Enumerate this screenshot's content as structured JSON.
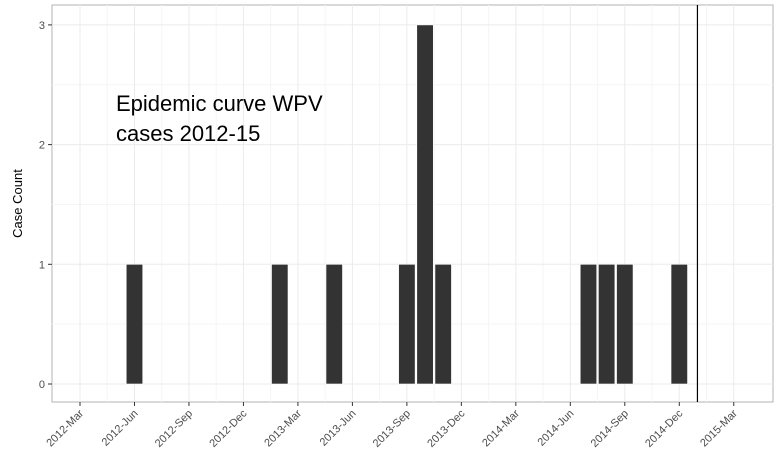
{
  "chart_data": {
    "type": "bar",
    "ylabel": "Case Count",
    "ylim": [
      0,
      3
    ],
    "yticks": [
      0,
      1,
      2,
      3
    ],
    "xticks": [
      "2012-Mar",
      "2012-Jun",
      "2012-Sep",
      "2012-Dec",
      "2013-Mar",
      "2013-Jun",
      "2013-Sep",
      "2013-Dec",
      "2014-Mar",
      "2014-Jun",
      "2014-Sep",
      "2014-Dec",
      "2015-Mar"
    ],
    "bars": [
      {
        "period": "2012-Jun",
        "value": 1
      },
      {
        "period": "2013-Feb",
        "value": 1
      },
      {
        "period": "2013-May",
        "value": 1
      },
      {
        "period": "2013-Sep",
        "value": 1
      },
      {
        "period": "2013-Oct",
        "value": 3
      },
      {
        "period": "2013-Nov",
        "value": 1
      },
      {
        "period": "2014-Jul",
        "value": 1
      },
      {
        "period": "2014-Aug",
        "value": 1
      },
      {
        "period": "2014-Sep",
        "value": 1
      },
      {
        "period": "2014-Dec",
        "value": 1
      }
    ],
    "reference_line": "2015-Jan",
    "annotation": [
      "Epidemic curve WPV",
      "cases 2012-15"
    ],
    "grid": true,
    "colors": {
      "bar": "#333333",
      "grid_major": "#ebebeb",
      "grid_minor": "#f5f5f5",
      "axis": "#b3b3b3"
    }
  }
}
